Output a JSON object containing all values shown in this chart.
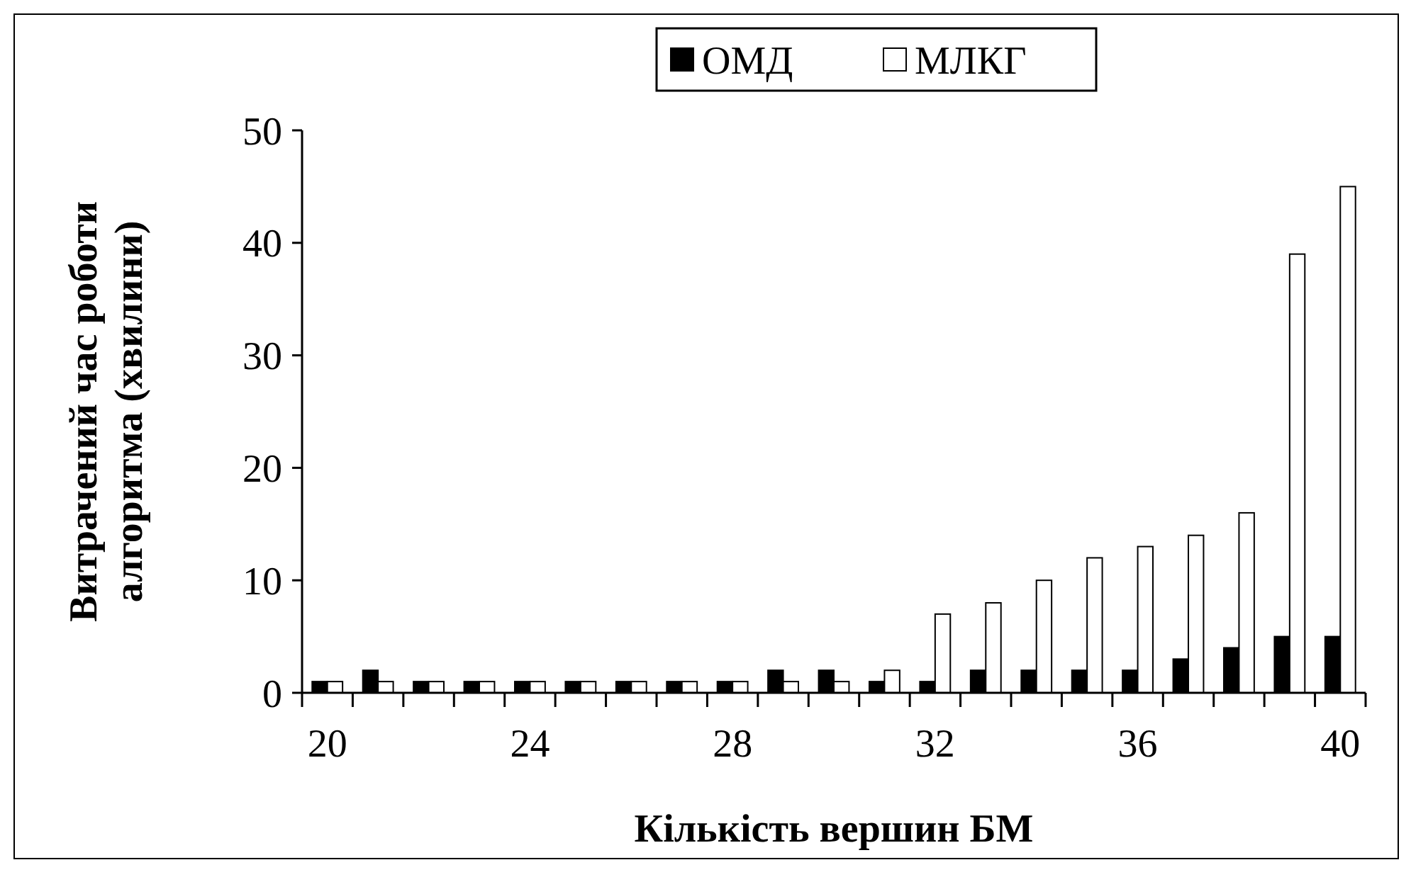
{
  "chart_data": {
    "type": "bar",
    "xlabel": "Кількість вершин БМ",
    "ylabel": "Витрачений час роботи алгоритма (хвилини)",
    "categories": [
      "20",
      null,
      null,
      null,
      "24",
      null,
      null,
      null,
      "28",
      null,
      null,
      null,
      "32",
      null,
      null,
      null,
      "36",
      null,
      null,
      null,
      "40"
    ],
    "series": [
      {
        "name": "ОМД",
        "color": "#000000",
        "values": [
          1,
          2,
          1,
          1,
          1,
          1,
          1,
          1,
          1,
          2,
          2,
          1,
          1,
          2,
          2,
          2,
          2,
          3,
          4,
          5,
          5
        ]
      },
      {
        "name": "МЛКГ",
        "color": "#ffffff",
        "values": [
          1,
          1,
          1,
          1,
          1,
          1,
          1,
          1,
          1,
          1,
          1,
          2,
          7,
          8,
          10,
          12,
          13,
          14,
          16,
          39,
          45
        ]
      }
    ],
    "ylim": [
      0,
      50
    ],
    "yticks": [
      0,
      10,
      20,
      30,
      40,
      50
    ],
    "grid": false,
    "legend": "top"
  }
}
